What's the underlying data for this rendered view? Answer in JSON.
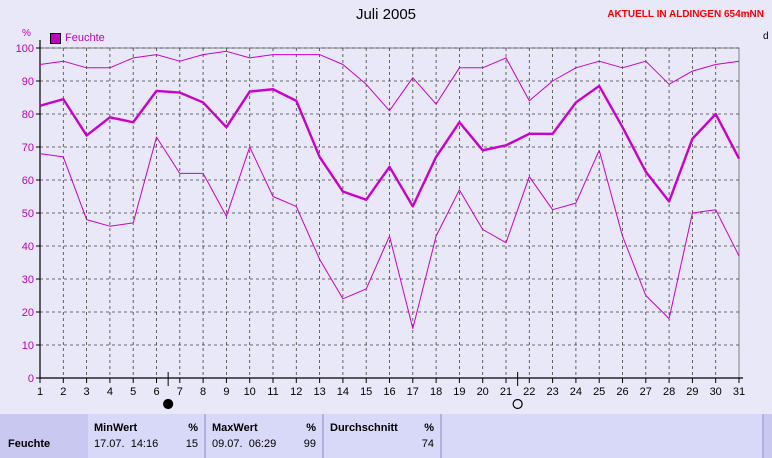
{
  "title": "Juli 2005",
  "station": "AKTUELL IN ALDINGEN 654mNN",
  "legend_label": "Feuchte",
  "unit": "%",
  "right_cut_label": "d",
  "colors": {
    "series": "#cc00cc",
    "grid": "#000000",
    "axis_text": "#c000c0",
    "background": "#e8e8f8"
  },
  "chart_data": {
    "type": "line",
    "title": "Juli 2005",
    "ylabel": "%",
    "xlabel": "",
    "ylim": [
      0,
      100
    ],
    "yticks": [
      0,
      10,
      20,
      30,
      40,
      50,
      60,
      70,
      80,
      90,
      100
    ],
    "x": [
      1,
      2,
      3,
      4,
      5,
      6,
      7,
      8,
      9,
      10,
      11,
      12,
      13,
      14,
      15,
      16,
      17,
      18,
      19,
      20,
      21,
      22,
      23,
      24,
      25,
      26,
      27,
      28,
      29,
      30,
      31
    ],
    "x_tick_labels": [
      "1",
      "2",
      "3",
      "4",
      "5",
      "6",
      "7",
      "8",
      "9",
      "10",
      "11",
      "12",
      "13",
      "14",
      "15",
      "16",
      "17",
      "18",
      "19",
      "20",
      "21",
      "22",
      "23",
      "24",
      "25",
      "26",
      "27",
      "28",
      "29",
      "30",
      "31"
    ],
    "grid": true,
    "legend": "top-left",
    "series": [
      {
        "name": "Feuchte",
        "role": "max",
        "values": [
          95,
          96,
          94,
          94,
          97,
          98,
          96,
          98,
          99,
          97,
          98,
          98,
          98,
          95,
          89,
          81,
          91,
          83,
          94,
          94,
          97,
          84,
          90,
          94,
          96,
          94,
          96,
          89,
          93,
          95,
          96
        ]
      },
      {
        "name": "Feuchte",
        "role": "avg",
        "values": [
          82.5,
          84.5,
          73.5,
          79,
          77.5,
          87,
          86.5,
          83.5,
          76,
          86.8,
          87.5,
          84,
          67,
          56.5,
          54,
          64,
          52,
          67,
          77.5,
          69,
          70.5,
          74,
          74,
          83.5,
          88.5,
          76,
          62.5,
          53.5,
          72.5,
          80,
          66.5
        ]
      },
      {
        "name": "Feuchte",
        "role": "min",
        "values": [
          68,
          67,
          48,
          46,
          47,
          73,
          62,
          62,
          49,
          70,
          55,
          52,
          36,
          24,
          27,
          43,
          15,
          43,
          57,
          45,
          41,
          61,
          51,
          53,
          69,
          43,
          25,
          18,
          50,
          51,
          37
        ]
      }
    ],
    "moon_markers": [
      {
        "x": 6.5,
        "symbol": "full"
      },
      {
        "x": 21.5,
        "symbol": "new"
      }
    ]
  },
  "stats": {
    "row_label": "Feuchte",
    "min": {
      "header": "MinWert",
      "unit": "%",
      "datetime": "17.07.  14:16",
      "value": "15"
    },
    "max": {
      "header": "MaxWert",
      "unit": "%",
      "datetime": "09.07.  06:29",
      "value": "99"
    },
    "avg": {
      "header": "Durchschnitt",
      "unit": "%",
      "value": "74"
    }
  }
}
